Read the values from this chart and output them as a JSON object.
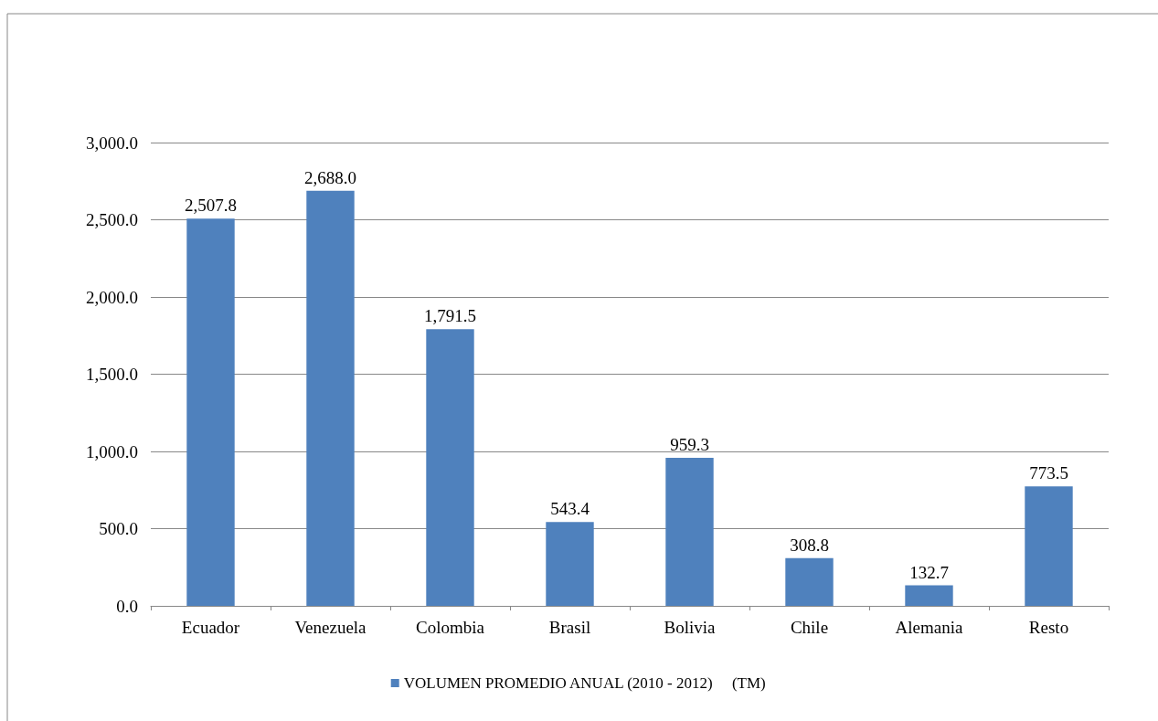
{
  "chart_data": {
    "type": "bar",
    "categories": [
      "Ecuador",
      "Venezuela",
      "Colombia",
      "Brasil",
      "Bolivia",
      "Chile",
      "Alemania",
      "Resto"
    ],
    "series": [
      {
        "name": "VOLUMEN PROMEDIO ANUAL (2010 - 2012)     (TM)",
        "color": "#4f81bd",
        "values": [
          2507.8,
          2688.0,
          1791.5,
          543.4,
          959.3,
          308.8,
          132.7,
          773.5
        ],
        "value_labels": [
          "2,507.8",
          "2,688.0",
          "1,791.5",
          "543.4",
          "959.3",
          "308.8",
          "132.7",
          "773.5"
        ]
      }
    ],
    "ylim": [
      0,
      3000
    ],
    "yticks": [
      {
        "value": 0,
        "label": "0.0"
      },
      {
        "value": 500,
        "label": "500.0"
      },
      {
        "value": 1000,
        "label": "1,000.0"
      },
      {
        "value": 1500,
        "label": "1,500.0"
      },
      {
        "value": 2000,
        "label": "2,000.0"
      },
      {
        "value": 2500,
        "label": "2,500.0"
      },
      {
        "value": 3000,
        "label": "3,000.0"
      }
    ],
    "grid": "y",
    "legend": "bottom"
  }
}
